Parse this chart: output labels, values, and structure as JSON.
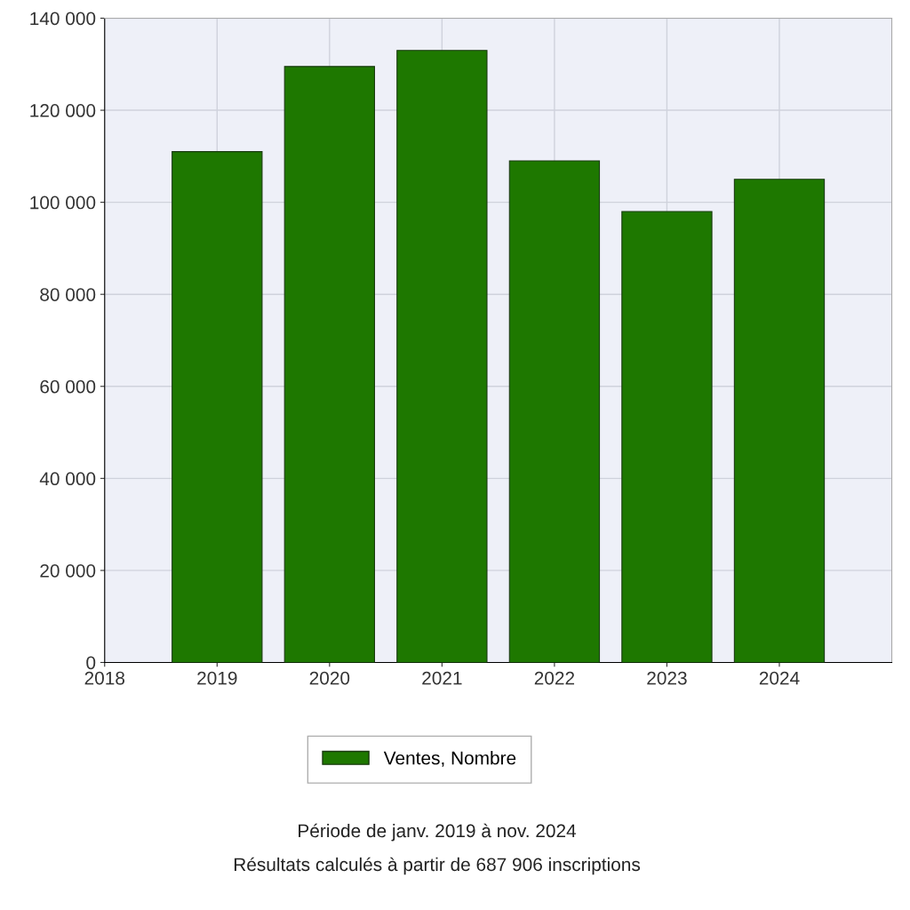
{
  "chart_data": {
    "type": "bar",
    "x": [
      2019,
      2020,
      2021,
      2022,
      2023,
      2024
    ],
    "series": [
      {
        "name": "Ventes, Nombre",
        "color": "#1e7800",
        "values": [
          111000,
          129500,
          133000,
          109000,
          98000,
          105000
        ]
      }
    ],
    "xlim": [
      2018,
      2025
    ],
    "xticks": [
      2018,
      2019,
      2020,
      2021,
      2022,
      2023,
      2024
    ],
    "ylim": [
      0,
      140000
    ],
    "yticks": [
      0,
      {
        "value": 20000,
        "label": "20 000"
      },
      {
        "value": 40000,
        "label": "40 000"
      },
      {
        "value": 60000,
        "label": "60 000"
      },
      {
        "value": 80000,
        "label": "80 000"
      },
      {
        "value": 100000,
        "label": "100 000"
      },
      {
        "value": 120000,
        "label": "120 000"
      },
      {
        "value": 140000,
        "label": "140 000"
      }
    ],
    "grid": true,
    "legend": "bottom",
    "annotations": [
      "Période de janv. 2019 à nov. 2024",
      "Résultats calculés à partir de 687 906 inscriptions"
    ]
  }
}
